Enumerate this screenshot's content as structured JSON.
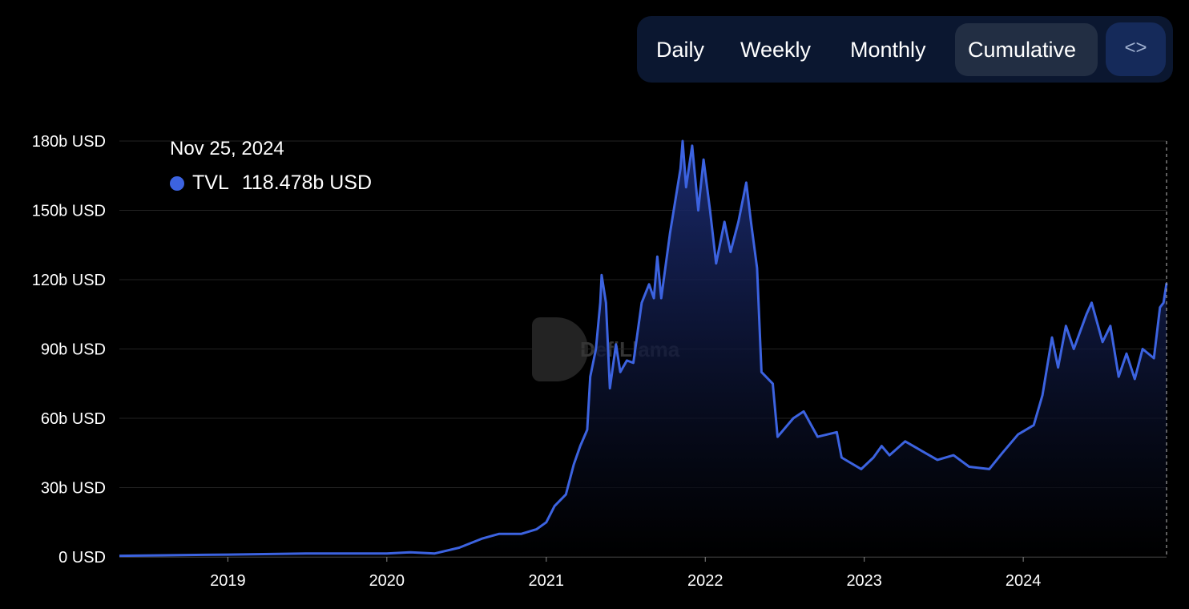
{
  "toolbar": {
    "buttons": [
      {
        "label": "Daily"
      },
      {
        "label": "Weekly"
      },
      {
        "label": "Monthly"
      },
      {
        "label": "Cumulative",
        "active": true
      }
    ],
    "embed_icon": "code-brackets-icon",
    "embed_label": "<>"
  },
  "tooltip": {
    "date": "Nov 25, 2024",
    "series": "TVL",
    "value": "118.478b USD",
    "color": "#3c63e0"
  },
  "watermark": "DefiLlama",
  "chart_data": {
    "type": "area",
    "title": "",
    "xlabel": "",
    "ylabel": "",
    "ylim": [
      0,
      180
    ],
    "y_unit": "b USD",
    "y_ticks": [
      "0 USD",
      "30b USD",
      "60b USD",
      "90b USD",
      "120b USD",
      "150b USD",
      "180b USD"
    ],
    "x_ticks": [
      "2019",
      "2020",
      "2021",
      "2022",
      "2023",
      "2024"
    ],
    "xlim": [
      "2018-04-27",
      "2024-11-25"
    ],
    "grid": true,
    "line_color": "#3c63e0",
    "series": [
      {
        "name": "TVL",
        "points": [
          [
            "2018-04-27",
            0.5
          ],
          [
            "2019-01-01",
            1
          ],
          [
            "2019-07-01",
            1.5
          ],
          [
            "2020-01-01",
            1.5
          ],
          [
            "2020-02-25",
            2
          ],
          [
            "2020-04-20",
            1.5
          ],
          [
            "2020-06-15",
            4
          ],
          [
            "2020-08-08",
            8
          ],
          [
            "2020-09-15",
            10
          ],
          [
            "2020-11-05",
            10
          ],
          [
            "2020-12-10",
            12
          ],
          [
            "2021-01-01",
            15
          ],
          [
            "2021-01-20",
            22
          ],
          [
            "2021-02-15",
            27
          ],
          [
            "2021-03-05",
            40
          ],
          [
            "2021-03-20",
            48
          ],
          [
            "2021-04-05",
            55
          ],
          [
            "2021-04-12",
            78
          ],
          [
            "2021-04-25",
            90
          ],
          [
            "2021-05-05",
            110
          ],
          [
            "2021-05-08",
            122
          ],
          [
            "2021-05-18",
            110
          ],
          [
            "2021-05-27",
            73
          ],
          [
            "2021-06-10",
            92
          ],
          [
            "2021-06-20",
            80
          ],
          [
            "2021-07-05",
            85
          ],
          [
            "2021-07-20",
            84
          ],
          [
            "2021-08-08",
            110
          ],
          [
            "2021-08-25",
            118
          ],
          [
            "2021-09-05",
            112
          ],
          [
            "2021-09-13",
            130
          ],
          [
            "2021-09-22",
            112
          ],
          [
            "2021-10-12",
            140
          ],
          [
            "2021-11-05",
            168
          ],
          [
            "2021-11-10",
            180
          ],
          [
            "2021-11-18",
            160
          ],
          [
            "2021-12-02",
            178
          ],
          [
            "2021-12-16",
            150
          ],
          [
            "2021-12-28",
            172
          ],
          [
            "2022-01-12",
            150
          ],
          [
            "2022-01-26",
            127
          ],
          [
            "2022-02-14",
            145
          ],
          [
            "2022-02-28",
            132
          ],
          [
            "2022-03-18",
            145
          ],
          [
            "2022-04-05",
            162
          ],
          [
            "2022-04-16",
            145
          ],
          [
            "2022-04-30",
            125
          ],
          [
            "2022-05-10",
            80
          ],
          [
            "2022-06-05",
            75
          ],
          [
            "2022-06-16",
            52
          ],
          [
            "2022-07-22",
            60
          ],
          [
            "2022-08-15",
            63
          ],
          [
            "2022-09-16",
            52
          ],
          [
            "2022-10-30",
            54
          ],
          [
            "2022-11-10",
            43
          ],
          [
            "2022-12-25",
            38
          ],
          [
            "2023-01-22",
            43
          ],
          [
            "2023-02-10",
            48
          ],
          [
            "2023-02-28",
            44
          ],
          [
            "2023-04-05",
            50
          ],
          [
            "2023-05-12",
            46
          ],
          [
            "2023-06-18",
            42
          ],
          [
            "2023-07-25",
            44
          ],
          [
            "2023-08-30",
            39
          ],
          [
            "2023-10-15",
            38
          ],
          [
            "2023-11-14",
            45
          ],
          [
            "2023-12-20",
            53
          ],
          [
            "2024-01-25",
            57
          ],
          [
            "2024-02-14",
            70
          ],
          [
            "2024-03-07",
            95
          ],
          [
            "2024-03-21",
            82
          ],
          [
            "2024-04-08",
            100
          ],
          [
            "2024-04-26",
            90
          ],
          [
            "2024-05-25",
            105
          ],
          [
            "2024-06-06",
            110
          ],
          [
            "2024-07-01",
            93
          ],
          [
            "2024-07-19",
            100
          ],
          [
            "2024-08-07",
            78
          ],
          [
            "2024-08-25",
            88
          ],
          [
            "2024-09-13",
            77
          ],
          [
            "2024-10-01",
            90
          ],
          [
            "2024-10-27",
            86
          ],
          [
            "2024-11-10",
            108
          ],
          [
            "2024-11-18",
            110
          ],
          [
            "2024-11-25",
            118.478
          ]
        ]
      }
    ]
  }
}
